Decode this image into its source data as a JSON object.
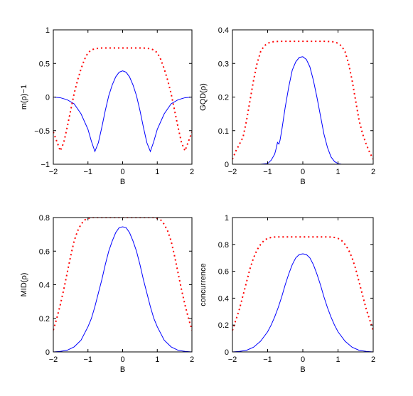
{
  "chart_data": [
    {
      "type": "line",
      "xlabel": "B",
      "ylabel": "m(ρ)−1",
      "xlim": [
        -2,
        2
      ],
      "ylim": [
        -1,
        1
      ],
      "xticks": [
        "−2",
        "−1",
        "0",
        "1",
        "2"
      ],
      "yticks": [
        "−1",
        "−0.5",
        "0",
        "0.5",
        "1"
      ],
      "series": [
        {
          "style": "solid",
          "color": "#0000ff",
          "x": [
            -2.0,
            -1.8,
            -1.6,
            -1.4,
            -1.2,
            -1.0,
            -0.9,
            -0.8,
            -0.7,
            -0.6,
            -0.5,
            -0.4,
            -0.3,
            -0.2,
            -0.1,
            0.0,
            0.1,
            0.2,
            0.3,
            0.4,
            0.5,
            0.6,
            0.7,
            0.8,
            0.9,
            1.0,
            1.2,
            1.4,
            1.6,
            1.8,
            2.0
          ],
          "y": [
            0.0,
            -0.01,
            -0.04,
            -0.1,
            -0.25,
            -0.48,
            -0.66,
            -0.81,
            -0.68,
            -0.45,
            -0.2,
            0.02,
            0.18,
            0.3,
            0.37,
            0.39,
            0.37,
            0.3,
            0.18,
            0.02,
            -0.2,
            -0.45,
            -0.68,
            -0.81,
            -0.66,
            -0.48,
            -0.25,
            -0.1,
            -0.04,
            -0.01,
            0.0
          ]
        },
        {
          "style": "dotted",
          "color": "#ff0000",
          "x": [
            -2.0,
            -1.9,
            -1.8,
            -1.7,
            -1.6,
            -1.5,
            -1.4,
            -1.3,
            -1.2,
            -1.1,
            -1.0,
            -0.9,
            -0.8,
            -0.6,
            -0.4,
            -0.2,
            0.0,
            0.2,
            0.4,
            0.6,
            0.8,
            0.9,
            1.0,
            1.1,
            1.2,
            1.3,
            1.4,
            1.5,
            1.6,
            1.7,
            1.8,
            1.9,
            2.0
          ],
          "y": [
            -0.52,
            -0.66,
            -0.8,
            -0.68,
            -0.45,
            -0.2,
            0.05,
            0.25,
            0.42,
            0.56,
            0.66,
            0.7,
            0.72,
            0.73,
            0.73,
            0.73,
            0.73,
            0.73,
            0.73,
            0.73,
            0.72,
            0.7,
            0.66,
            0.56,
            0.42,
            0.25,
            0.05,
            -0.2,
            -0.45,
            -0.68,
            -0.8,
            -0.66,
            -0.52
          ]
        }
      ]
    },
    {
      "type": "line",
      "xlabel": "B",
      "ylabel": "GQD(ρ)",
      "xlim": [
        -2,
        2
      ],
      "ylim": [
        0,
        0.4
      ],
      "xticks": [
        "−2",
        "−1",
        "0",
        "1",
        "2"
      ],
      "yticks": [
        "0",
        "0.1",
        "0.2",
        "0.3",
        "0.4"
      ],
      "series": [
        {
          "style": "solid",
          "color": "#0000ff",
          "x": [
            -2.0,
            -1.2,
            -1.0,
            -0.9,
            -0.8,
            -0.75,
            -0.72,
            -0.68,
            -0.65,
            -0.6,
            -0.5,
            -0.4,
            -0.3,
            -0.2,
            -0.1,
            0.0,
            0.1,
            0.2,
            0.3,
            0.4,
            0.5,
            0.6,
            0.7,
            0.8,
            0.9,
            1.0,
            1.1,
            1.2,
            2.0
          ],
          "y": [
            0.0,
            0.0,
            0.002,
            0.012,
            0.03,
            0.05,
            0.065,
            0.06,
            0.07,
            0.1,
            0.17,
            0.23,
            0.28,
            0.305,
            0.318,
            0.32,
            0.312,
            0.29,
            0.25,
            0.2,
            0.145,
            0.09,
            0.05,
            0.022,
            0.008,
            0.002,
            0.0,
            0.0,
            0.0
          ]
        },
        {
          "style": "dotted",
          "color": "#ff0000",
          "x": [
            -2.0,
            -1.9,
            -1.8,
            -1.7,
            -1.6,
            -1.5,
            -1.4,
            -1.3,
            -1.2,
            -1.1,
            -1.0,
            -0.9,
            -0.8,
            -0.6,
            -0.4,
            -0.2,
            0.0,
            0.2,
            0.4,
            0.6,
            0.8,
            0.9,
            1.0,
            1.1,
            1.2,
            1.3,
            1.4,
            1.5,
            1.6,
            1.7,
            1.8,
            1.9,
            2.0
          ],
          "y": [
            0.015,
            0.04,
            0.06,
            0.08,
            0.13,
            0.19,
            0.25,
            0.3,
            0.335,
            0.352,
            0.36,
            0.364,
            0.365,
            0.366,
            0.366,
            0.366,
            0.366,
            0.366,
            0.366,
            0.366,
            0.365,
            0.364,
            0.36,
            0.352,
            0.335,
            0.3,
            0.25,
            0.19,
            0.13,
            0.09,
            0.06,
            0.035,
            0.015
          ]
        }
      ]
    },
    {
      "type": "line",
      "xlabel": "B",
      "ylabel": "MID(ρ)",
      "xlim": [
        -2,
        2
      ],
      "ylim": [
        0,
        0.8
      ],
      "xticks": [
        "−2",
        "−1",
        "0",
        "1",
        "2"
      ],
      "yticks": [
        "0",
        "0.2",
        "0.4",
        "0.6",
        "0.8"
      ],
      "series": [
        {
          "style": "solid",
          "color": "#0000ff",
          "x": [
            -2.0,
            -1.8,
            -1.6,
            -1.4,
            -1.2,
            -1.0,
            -0.9,
            -0.8,
            -0.7,
            -0.6,
            -0.5,
            -0.4,
            -0.3,
            -0.2,
            -0.1,
            0.0,
            0.1,
            0.2,
            0.3,
            0.4,
            0.5,
            0.6,
            0.7,
            0.8,
            0.9,
            1.0,
            1.2,
            1.4,
            1.6,
            1.8,
            2.0
          ],
          "y": [
            0.0,
            0.003,
            0.01,
            0.03,
            0.07,
            0.15,
            0.2,
            0.27,
            0.35,
            0.43,
            0.52,
            0.6,
            0.66,
            0.71,
            0.74,
            0.745,
            0.74,
            0.71,
            0.66,
            0.6,
            0.52,
            0.43,
            0.35,
            0.27,
            0.2,
            0.15,
            0.07,
            0.03,
            0.01,
            0.003,
            0.0
          ]
        },
        {
          "style": "dotted",
          "color": "#ff0000",
          "x": [
            -2.0,
            -1.9,
            -1.8,
            -1.7,
            -1.6,
            -1.5,
            -1.4,
            -1.3,
            -1.2,
            -1.1,
            -1.0,
            -0.9,
            -0.8,
            -0.6,
            -0.4,
            -0.2,
            0.0,
            0.2,
            0.4,
            0.6,
            0.8,
            0.9,
            1.0,
            1.1,
            1.2,
            1.3,
            1.4,
            1.5,
            1.6,
            1.7,
            1.8,
            1.9,
            2.0
          ],
          "y": [
            0.13,
            0.2,
            0.28,
            0.37,
            0.47,
            0.57,
            0.66,
            0.72,
            0.76,
            0.785,
            0.795,
            0.8,
            0.8,
            0.8,
            0.8,
            0.8,
            0.8,
            0.8,
            0.8,
            0.8,
            0.8,
            0.8,
            0.795,
            0.785,
            0.76,
            0.72,
            0.66,
            0.57,
            0.47,
            0.37,
            0.28,
            0.2,
            0.13
          ]
        }
      ]
    },
    {
      "type": "line",
      "xlabel": "B",
      "ylabel": "concurrence",
      "xlim": [
        -2,
        2
      ],
      "ylim": [
        0,
        1
      ],
      "xticks": [
        "−2",
        "−1",
        "0",
        "1",
        "2"
      ],
      "yticks": [
        "0",
        "0.2",
        "0.4",
        "0.6",
        "0.8",
        "1"
      ],
      "series": [
        {
          "style": "solid",
          "color": "#0000ff",
          "x": [
            -2.0,
            -1.8,
            -1.6,
            -1.4,
            -1.2,
            -1.0,
            -0.9,
            -0.8,
            -0.7,
            -0.6,
            -0.5,
            -0.4,
            -0.3,
            -0.2,
            -0.1,
            0.0,
            0.1,
            0.2,
            0.3,
            0.4,
            0.5,
            0.6,
            0.7,
            0.8,
            0.9,
            1.0,
            1.2,
            1.4,
            1.6,
            1.8,
            2.0
          ],
          "y": [
            0.0,
            0.004,
            0.012,
            0.035,
            0.08,
            0.15,
            0.2,
            0.26,
            0.33,
            0.41,
            0.5,
            0.58,
            0.65,
            0.7,
            0.725,
            0.73,
            0.725,
            0.7,
            0.65,
            0.58,
            0.5,
            0.41,
            0.33,
            0.26,
            0.2,
            0.15,
            0.08,
            0.035,
            0.012,
            0.004,
            0.0
          ]
        },
        {
          "style": "dotted",
          "color": "#ff0000",
          "x": [
            -2.0,
            -1.9,
            -1.8,
            -1.7,
            -1.6,
            -1.5,
            -1.4,
            -1.3,
            -1.2,
            -1.1,
            -1.0,
            -0.9,
            -0.8,
            -0.6,
            -0.4,
            -0.2,
            0.0,
            0.2,
            0.4,
            0.6,
            0.8,
            0.9,
            1.0,
            1.1,
            1.2,
            1.3,
            1.4,
            1.5,
            1.6,
            1.7,
            1.8,
            1.9,
            2.0
          ],
          "y": [
            0.16,
            0.24,
            0.32,
            0.42,
            0.52,
            0.62,
            0.7,
            0.76,
            0.8,
            0.83,
            0.845,
            0.852,
            0.855,
            0.856,
            0.856,
            0.856,
            0.856,
            0.856,
            0.856,
            0.856,
            0.855,
            0.852,
            0.845,
            0.83,
            0.8,
            0.76,
            0.7,
            0.62,
            0.52,
            0.42,
            0.32,
            0.24,
            0.16
          ]
        }
      ]
    }
  ]
}
